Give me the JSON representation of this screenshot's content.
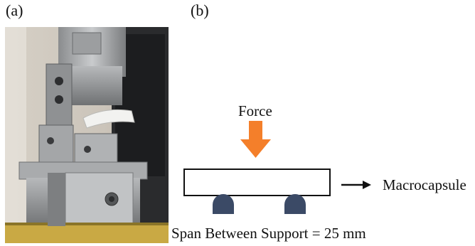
{
  "panels": {
    "a": {
      "label": "(a)"
    },
    "b": {
      "label": "(b)"
    }
  },
  "diagram": {
    "force_label": "Force",
    "specimen_label": "Macrocapsule",
    "span_label": "Span Between Support = 25 mm",
    "colors": {
      "force_arrow": "#f47f2a",
      "support": "#3b4a66",
      "outline": "#111111"
    }
  }
}
